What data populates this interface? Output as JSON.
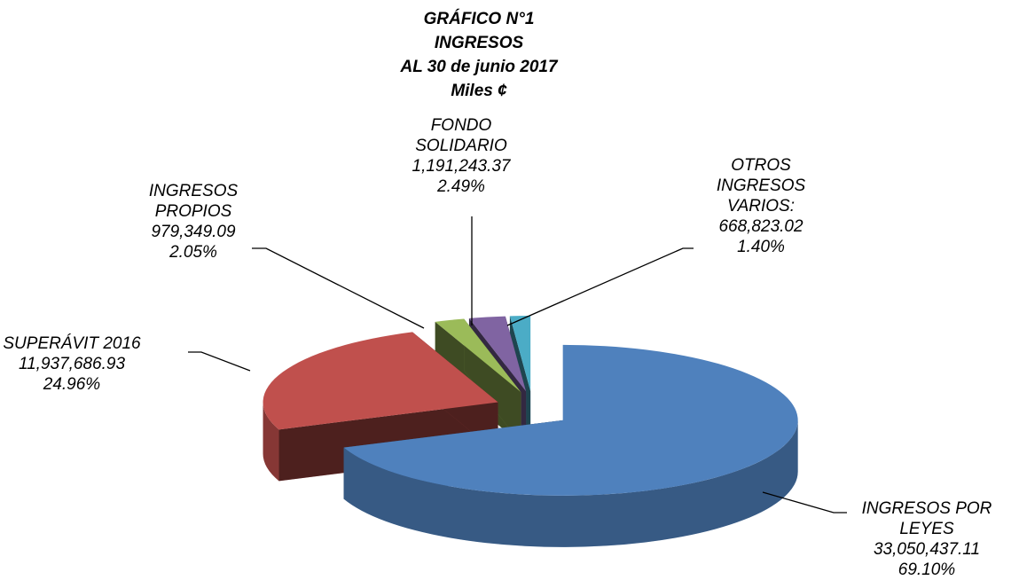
{
  "chart_data": {
    "type": "pie3d",
    "title": [
      "GRÁFICO N°1",
      "INGRESOS",
      "AL 30 de junio 2017",
      "Miles ¢"
    ],
    "categories": [
      "INGRESOS POR LEYES",
      "SUPERÁVIT 2016",
      "INGRESOS PROPIOS",
      "FONDO SOLIDARIO",
      "OTROS INGRESOS VARIOS:"
    ],
    "values": [
      33050437.11,
      11937686.93,
      979349.09,
      1191243.37,
      668823.02
    ],
    "value_labels": [
      "33,050,437.11",
      "11,937,686.93",
      "979,349.09",
      "1,191,243.37",
      "668,823.02"
    ],
    "percentages": [
      69.1,
      24.96,
      2.05,
      2.49,
      1.4
    ],
    "percentage_labels": [
      "69.10%",
      "24.96%",
      "2.05%",
      "2.49%",
      "1.40%"
    ],
    "colors": [
      "#4f81bd",
      "#c0504d",
      "#9bbb59",
      "#8064a2",
      "#4bacc6"
    ]
  }
}
